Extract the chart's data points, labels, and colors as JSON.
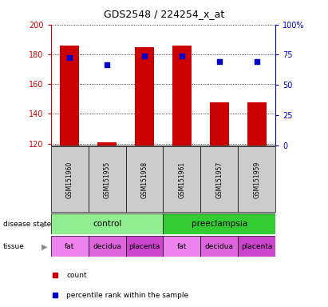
{
  "title": "GDS2548 / 224254_x_at",
  "samples": [
    "GSM151960",
    "GSM151955",
    "GSM151958",
    "GSM151961",
    "GSM151957",
    "GSM151959"
  ],
  "bar_values": [
    186,
    121,
    185,
    186,
    148,
    148
  ],
  "bar_bottom": 119,
  "percentile_values": [
    178,
    173,
    179,
    179,
    175,
    175
  ],
  "ylim_left": [
    119,
    200
  ],
  "ylim_right": [
    0,
    100
  ],
  "yticks_left": [
    120,
    140,
    160,
    180,
    200
  ],
  "yticks_right": [
    0,
    25,
    50,
    75,
    100
  ],
  "bar_color": "#cc0000",
  "percentile_color": "#0000cc",
  "disease_state": [
    {
      "label": "control",
      "span": [
        0,
        3
      ],
      "color": "#90ee90"
    },
    {
      "label": "preeclampsia",
      "span": [
        3,
        6
      ],
      "color": "#33cc33"
    }
  ],
  "tissue": [
    {
      "label": "fat",
      "span": [
        0,
        1
      ],
      "color": "#ee82ee"
    },
    {
      "label": "decidua",
      "span": [
        1,
        2
      ],
      "color": "#dd66dd"
    },
    {
      "label": "placenta",
      "span": [
        2,
        3
      ],
      "color": "#cc44cc"
    },
    {
      "label": "fat",
      "span": [
        3,
        4
      ],
      "color": "#ee82ee"
    },
    {
      "label": "decidua",
      "span": [
        4,
        5
      ],
      "color": "#dd66dd"
    },
    {
      "label": "placenta",
      "span": [
        5,
        6
      ],
      "color": "#cc44cc"
    }
  ],
  "legend_count_color": "#cc0000",
  "legend_percentile_color": "#0000cc",
  "left_axis_color": "#cc0000",
  "right_axis_color": "#0000cc",
  "bar_width": 0.5,
  "sample_box_color": "#cccccc",
  "figsize": [
    4.11,
    3.84
  ],
  "dpi": 100
}
